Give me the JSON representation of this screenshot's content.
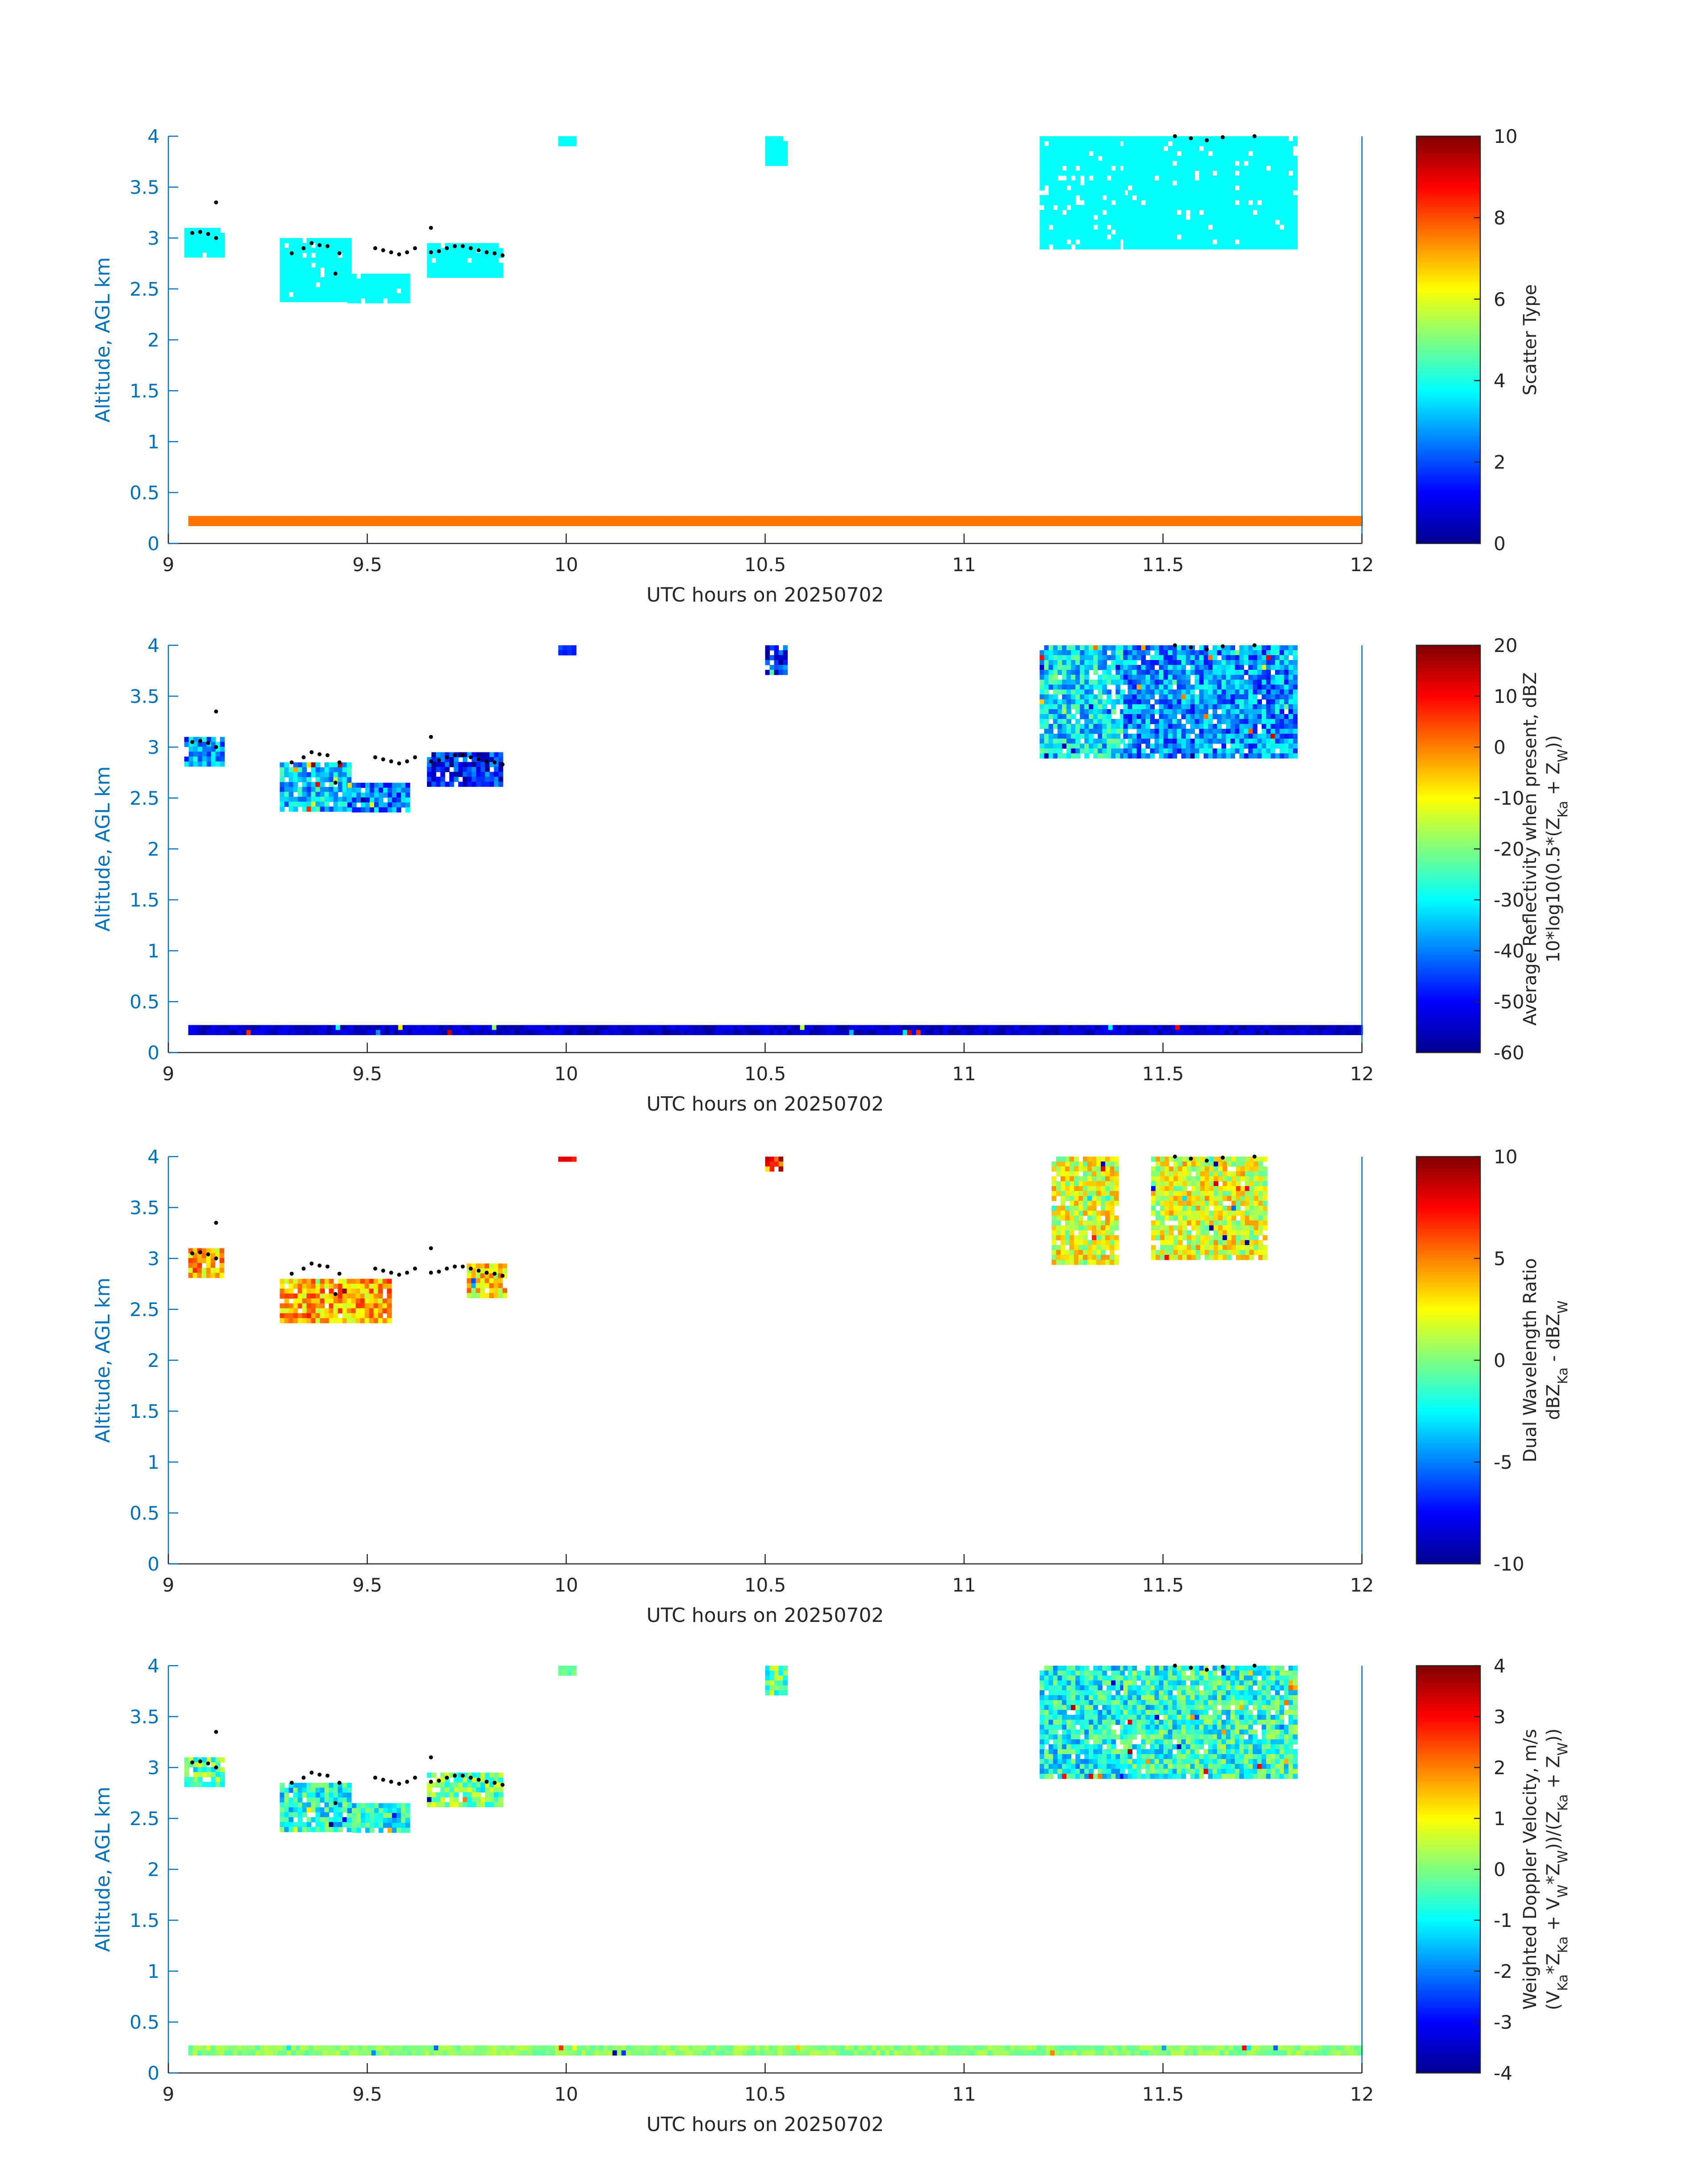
{
  "colors": {
    "y_axis": "#0072bd",
    "x_axis": "#262626",
    "mark": "#000000",
    "colormap": "jet"
  },
  "chart_data": [
    {
      "type": "heatmap",
      "title": "",
      "xlabel": "UTC hours on 20250702",
      "ylabel": "Altitude, AGL km",
      "xlim": [
        9,
        12
      ],
      "ylim": [
        0,
        4
      ],
      "x_ticks": [
        "9",
        "9.5",
        "10",
        "10.5",
        "11",
        "11.5",
        "12"
      ],
      "y_ticks": [
        "0",
        "0.5",
        "1",
        "1.5",
        "2",
        "2.5",
        "3",
        "3.5",
        "4"
      ],
      "colorbar": {
        "label": "Scatter Type",
        "label2": "",
        "range": [
          0,
          10
        ],
        "ticks": [
          "0",
          "2",
          "4",
          "6",
          "8",
          "10"
        ]
      },
      "field": "type",
      "regions": [
        {
          "x": [
            9.04,
            9.13
          ],
          "y": [
            2.83,
            3.1
          ],
          "value": 3.8
        },
        {
          "x": [
            9.28,
            9.45
          ],
          "y": [
            2.4,
            3.0
          ],
          "value": 3.8
        },
        {
          "x": [
            9.45,
            9.6
          ],
          "y": [
            2.4,
            2.65
          ],
          "value": 3.8
        },
        {
          "x": [
            9.65,
            9.84
          ],
          "y": [
            2.65,
            2.95
          ],
          "value": 3.8
        },
        {
          "x": [
            11.19,
            11.4
          ],
          "y": [
            2.9,
            4.0
          ],
          "value": 3.8
        },
        {
          "x": [
            11.4,
            11.83
          ],
          "y": [
            2.9,
            4.0
          ],
          "value": 3.8
        },
        {
          "x": [
            9.98,
            10.02
          ],
          "y": [
            3.95,
            4.0
          ],
          "value": 3.8
        },
        {
          "x": [
            10.5,
            10.55
          ],
          "y": [
            3.75,
            4.0
          ],
          "value": 3.8
        },
        {
          "x": [
            9.05,
            12.0
          ],
          "y": [
            0.19,
            0.27
          ],
          "value": 7.6
        }
      ]
    },
    {
      "type": "heatmap",
      "title": "",
      "xlabel": "UTC hours on 20250702",
      "ylabel": "Altitude, AGL km",
      "xlim": [
        9,
        12
      ],
      "ylim": [
        0,
        4
      ],
      "x_ticks": [
        "9",
        "9.5",
        "10",
        "10.5",
        "11",
        "11.5",
        "12"
      ],
      "y_ticks": [
        "0",
        "0.5",
        "1",
        "1.5",
        "2",
        "2.5",
        "3",
        "3.5",
        "4"
      ],
      "colorbar": {
        "label": "Average Reflectivity when present, dBZ",
        "label2": "10*log10(0.5*(Z_Ka + Z_W))",
        "range": [
          -60,
          20
        ],
        "ticks": [
          "-60",
          "-50",
          "-40",
          "-30",
          "-20",
          "-10",
          "0",
          "10",
          "20"
        ]
      },
      "field": "dbz",
      "regions": [
        {
          "x": [
            9.04,
            9.13
          ],
          "y": [
            2.83,
            3.1
          ],
          "value": -38
        },
        {
          "x": [
            9.28,
            9.45
          ],
          "y": [
            2.4,
            2.85
          ],
          "value": -35
        },
        {
          "x": [
            9.45,
            9.6
          ],
          "y": [
            2.4,
            2.65
          ],
          "value": -40
        },
        {
          "x": [
            9.65,
            9.84
          ],
          "y": [
            2.65,
            2.95
          ],
          "value": -48
        },
        {
          "x": [
            11.19,
            11.4
          ],
          "y": [
            2.9,
            4.0
          ],
          "value": -32
        },
        {
          "x": [
            11.4,
            11.83
          ],
          "y": [
            2.9,
            4.0
          ],
          "value": -38
        },
        {
          "x": [
            9.98,
            10.02
          ],
          "y": [
            3.95,
            4.0
          ],
          "value": -45
        },
        {
          "x": [
            10.5,
            10.55
          ],
          "y": [
            3.75,
            4.0
          ],
          "value": -48
        },
        {
          "x": [
            9.05,
            12.0
          ],
          "y": [
            0.19,
            0.27
          ],
          "value": -54
        }
      ]
    },
    {
      "type": "heatmap",
      "title": "",
      "xlabel": "UTC hours on 20250702",
      "ylabel": "Altitude, AGL km",
      "xlim": [
        9,
        12
      ],
      "ylim": [
        0,
        4
      ],
      "x_ticks": [
        "9",
        "9.5",
        "10",
        "10.5",
        "11",
        "11.5",
        "12"
      ],
      "y_ticks": [
        "0",
        "0.5",
        "1",
        "1.5",
        "2",
        "2.5",
        "3",
        "3.5",
        "4"
      ],
      "colorbar": {
        "label": "Dual Wavelength Ratio",
        "label2": "dBZ_Ka - dBZ_W",
        "range": [
          -10,
          10
        ],
        "ticks": [
          "-10",
          "-5",
          "0",
          "5",
          "10"
        ]
      },
      "field": "dwr",
      "regions": [
        {
          "x": [
            9.05,
            9.13
          ],
          "y": [
            2.83,
            3.1
          ],
          "value": 4
        },
        {
          "x": [
            9.28,
            9.55
          ],
          "y": [
            2.4,
            2.8
          ],
          "value": 4
        },
        {
          "x": [
            9.75,
            9.84
          ],
          "y": [
            2.65,
            2.95
          ],
          "value": 3
        },
        {
          "x": [
            11.22,
            11.38
          ],
          "y": [
            2.95,
            4.0
          ],
          "value": 2
        },
        {
          "x": [
            11.47,
            11.76
          ],
          "y": [
            3.0,
            4.0
          ],
          "value": 2
        },
        {
          "x": [
            9.98,
            10.02
          ],
          "y": [
            3.96,
            4.0
          ],
          "value": 7
        },
        {
          "x": [
            10.5,
            10.54
          ],
          "y": [
            3.9,
            4.0
          ],
          "value": 7
        }
      ]
    },
    {
      "type": "heatmap",
      "title": "",
      "xlabel": "UTC hours on 20250702",
      "ylabel": "Altitude, AGL km",
      "xlim": [
        9,
        12
      ],
      "ylim": [
        0,
        4
      ],
      "x_ticks": [
        "9",
        "9.5",
        "10",
        "10.5",
        "11",
        "11.5",
        "12"
      ],
      "y_ticks": [
        "0",
        "0.5",
        "1",
        "1.5",
        "2",
        "2.5",
        "3",
        "3.5",
        "4"
      ],
      "colorbar": {
        "label": "Weighted Doppler Velocity, m/s",
        "label2": "(V_Ka*Z_Ka + V_W*Z_W))/(Z_Ka + Z_W))",
        "range": [
          -4,
          4
        ],
        "ticks": [
          "-4",
          "-3",
          "-2",
          "-1",
          "0",
          "1",
          "2",
          "3",
          "4"
        ]
      },
      "field": "vel",
      "regions": [
        {
          "x": [
            9.04,
            9.13
          ],
          "y": [
            2.83,
            3.1
          ],
          "value": -0.4
        },
        {
          "x": [
            9.28,
            9.45
          ],
          "y": [
            2.4,
            2.85
          ],
          "value": -0.9
        },
        {
          "x": [
            9.45,
            9.6
          ],
          "y": [
            2.4,
            2.65
          ],
          "value": -0.9
        },
        {
          "x": [
            9.65,
            9.84
          ],
          "y": [
            2.65,
            2.95
          ],
          "value": -0.2
        },
        {
          "x": [
            11.19,
            11.4
          ],
          "y": [
            2.9,
            4.0
          ],
          "value": -0.9
        },
        {
          "x": [
            11.4,
            11.83
          ],
          "y": [
            2.9,
            4.0
          ],
          "value": -0.7
        },
        {
          "x": [
            9.98,
            10.02
          ],
          "y": [
            3.95,
            4.0
          ],
          "value": -0.3
        },
        {
          "x": [
            10.5,
            10.55
          ],
          "y": [
            3.75,
            4.0
          ],
          "value": -0.3
        },
        {
          "x": [
            9.05,
            12.0
          ],
          "y": [
            0.19,
            0.27
          ],
          "value": 0.1
        }
      ]
    }
  ],
  "cloud_top_markers": [
    [
      9.06,
      3.05
    ],
    [
      9.08,
      3.06
    ],
    [
      9.1,
      3.04
    ],
    [
      9.12,
      3.0
    ],
    [
      9.12,
      3.35
    ],
    [
      9.31,
      2.85
    ],
    [
      9.34,
      2.9
    ],
    [
      9.36,
      2.95
    ],
    [
      9.38,
      2.93
    ],
    [
      9.4,
      2.92
    ],
    [
      9.42,
      2.65
    ],
    [
      9.43,
      2.85
    ],
    [
      9.52,
      2.9
    ],
    [
      9.54,
      2.88
    ],
    [
      9.56,
      2.86
    ],
    [
      9.58,
      2.84
    ],
    [
      9.6,
      2.86
    ],
    [
      9.62,
      2.9
    ],
    [
      9.66,
      3.1
    ],
    [
      9.66,
      2.86
    ],
    [
      9.68,
      2.87
    ],
    [
      9.7,
      2.9
    ],
    [
      9.72,
      2.92
    ],
    [
      9.74,
      2.92
    ],
    [
      9.76,
      2.9
    ],
    [
      9.78,
      2.88
    ],
    [
      9.8,
      2.86
    ],
    [
      9.82,
      2.85
    ],
    [
      9.84,
      2.83
    ],
    [
      11.53,
      4.0
    ],
    [
      11.57,
      3.98
    ],
    [
      11.61,
      3.96
    ],
    [
      11.65,
      3.99
    ],
    [
      11.73,
      4.0
    ]
  ]
}
